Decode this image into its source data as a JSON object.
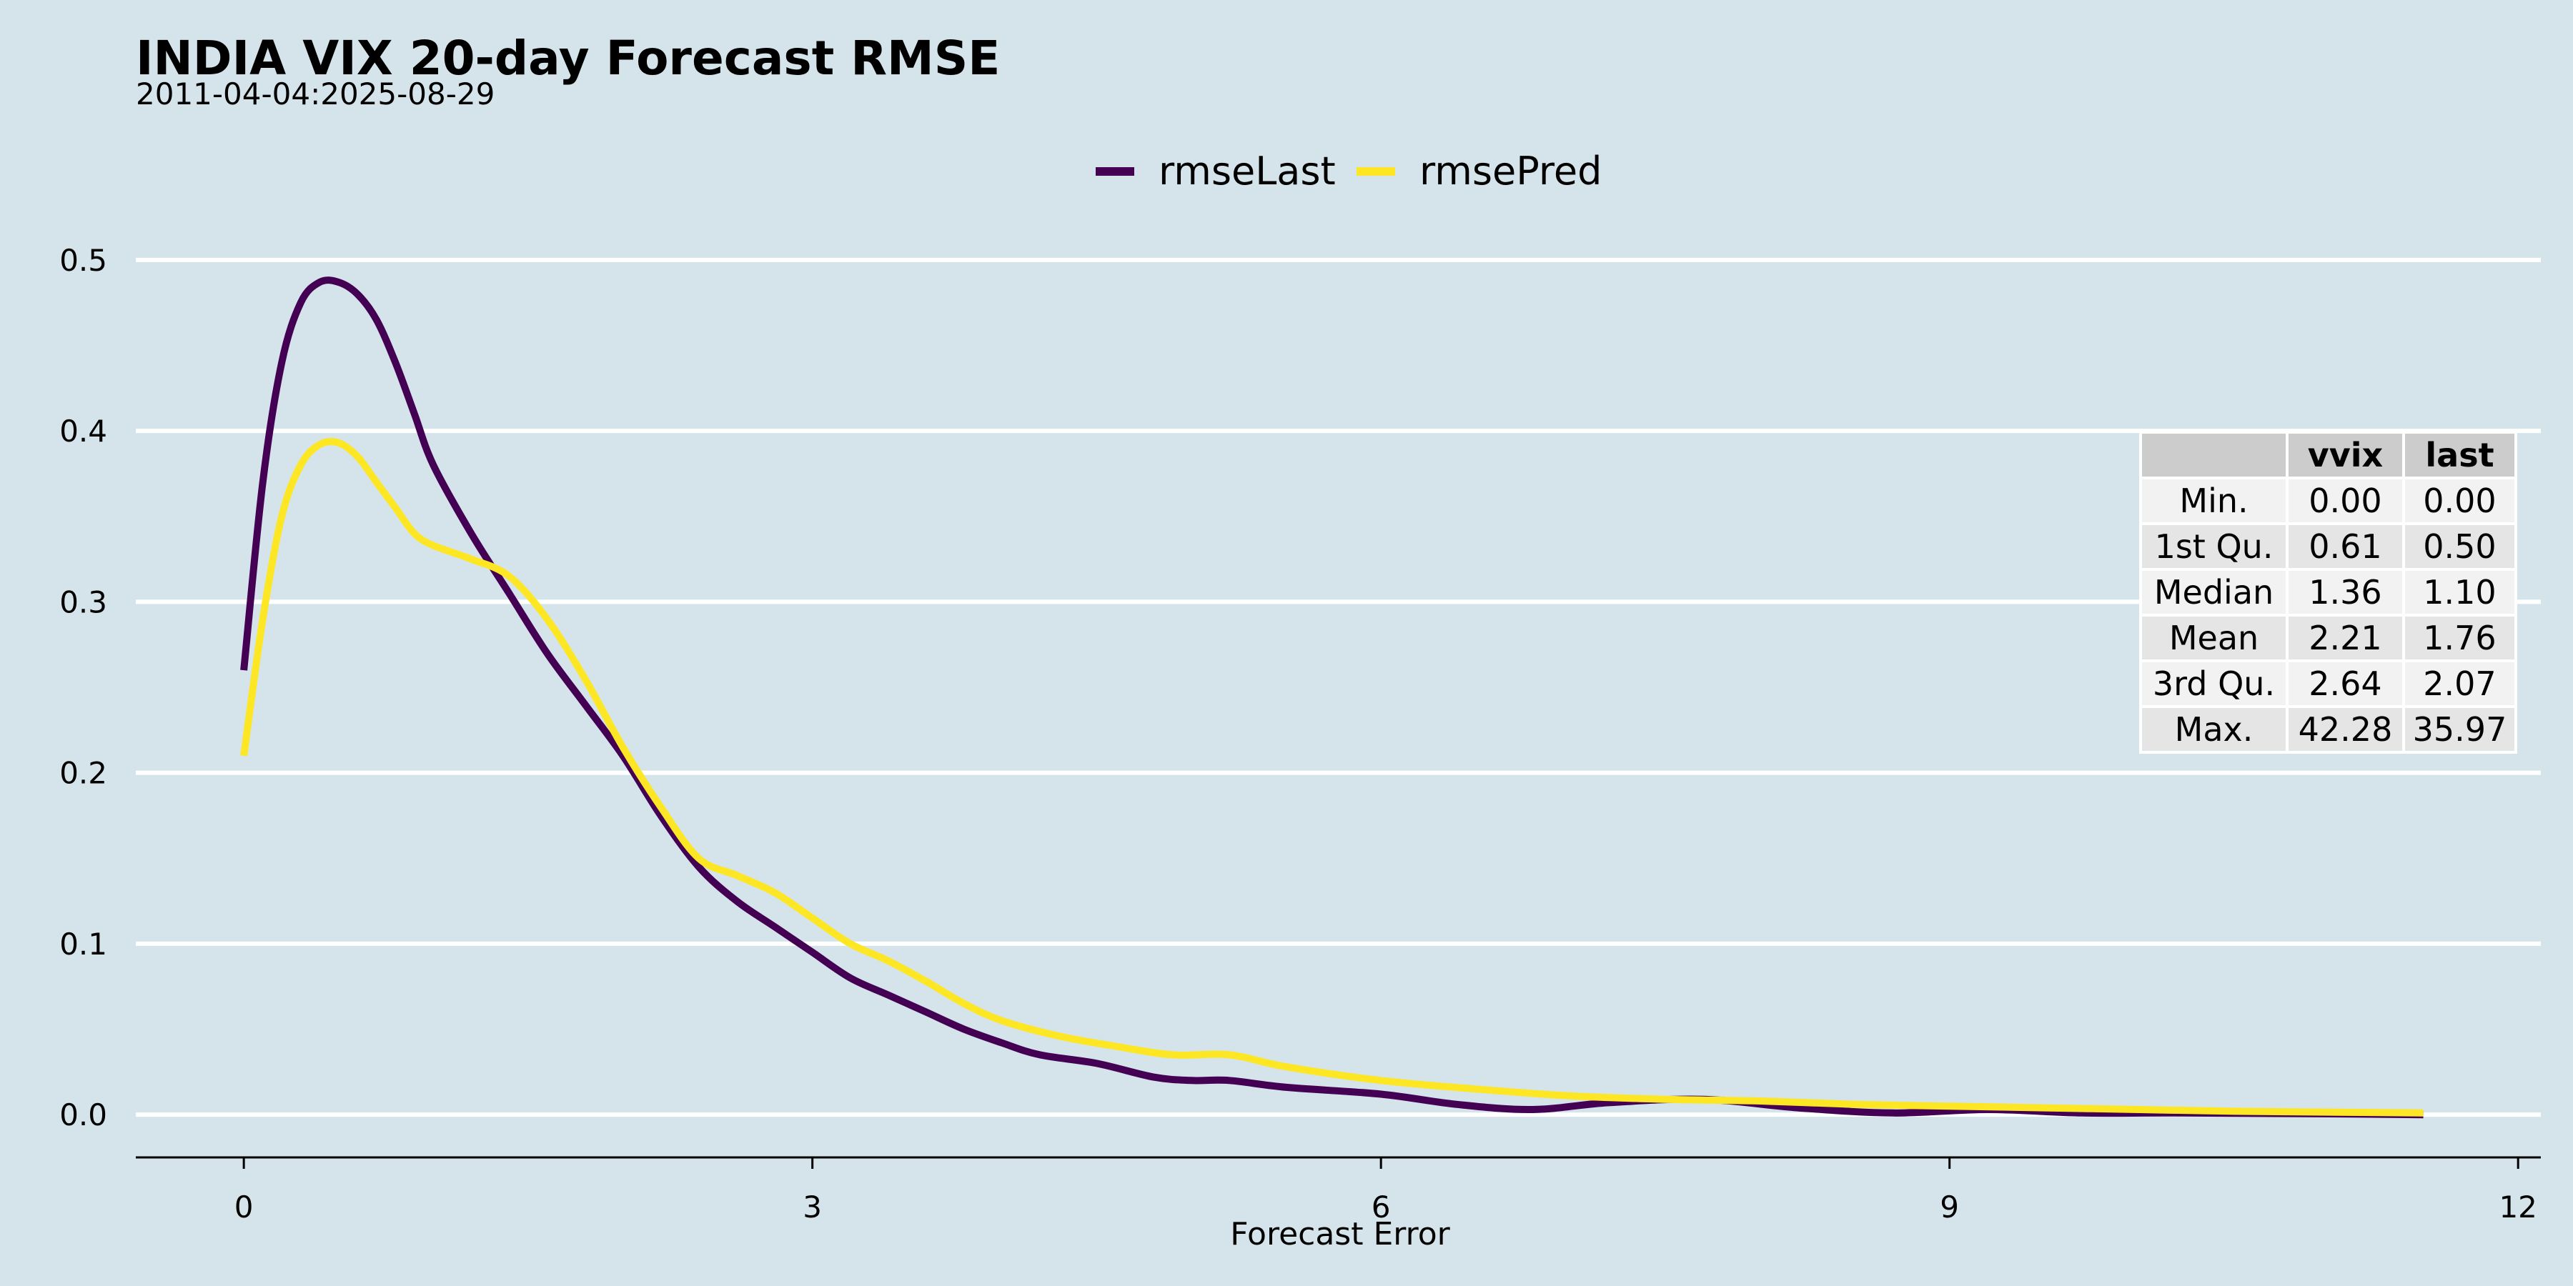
{
  "colors": {
    "background": "#d5e4eb",
    "gridline": "#ffffff",
    "axis": "#000000",
    "rmseLast": "#440154",
    "rmsePred": "#fde725",
    "table_header_bg": "#cccccc",
    "table_row_light": "#f2f2f2",
    "table_row_dark": "#e5e5e5"
  },
  "chart_data": {
    "type": "line",
    "title": "INDIA VIX 20-day Forecast RMSE",
    "subtitle": "2011-04-04:2025-08-29",
    "xlabel": "Forecast Error",
    "ylabel": "",
    "xlim": [
      -0.57,
      12.12
    ],
    "ylim": [
      -0.025,
      0.51
    ],
    "x_ticks": [
      0,
      3,
      6,
      9,
      12
    ],
    "y_ticks": [
      0.0,
      0.1,
      0.2,
      0.3,
      0.4,
      0.5
    ],
    "x_tick_labels": [
      "0",
      "3",
      "6",
      "9",
      "12"
    ],
    "y_tick_labels": [
      "0.0",
      "0.1",
      "0.2",
      "0.3",
      "0.4",
      "0.5"
    ],
    "grid": "horizontal",
    "legend_position": "top",
    "series": [
      {
        "name": "rmseLast",
        "color": "#440154",
        "points": [
          [
            0.0,
            0.26
          ],
          [
            0.1,
            0.37
          ],
          [
            0.2,
            0.44
          ],
          [
            0.3,
            0.475
          ],
          [
            0.4,
            0.487
          ],
          [
            0.5,
            0.487
          ],
          [
            0.6,
            0.48
          ],
          [
            0.7,
            0.465
          ],
          [
            0.8,
            0.44
          ],
          [
            0.9,
            0.41
          ],
          [
            1.0,
            0.38
          ],
          [
            1.2,
            0.34
          ],
          [
            1.4,
            0.305
          ],
          [
            1.6,
            0.27
          ],
          [
            1.8,
            0.24
          ],
          [
            2.0,
            0.21
          ],
          [
            2.2,
            0.175
          ],
          [
            2.4,
            0.145
          ],
          [
            2.6,
            0.125
          ],
          [
            2.8,
            0.11
          ],
          [
            3.0,
            0.095
          ],
          [
            3.2,
            0.08
          ],
          [
            3.4,
            0.07
          ],
          [
            3.6,
            0.06
          ],
          [
            3.8,
            0.05
          ],
          [
            4.0,
            0.042
          ],
          [
            4.2,
            0.035
          ],
          [
            4.5,
            0.03
          ],
          [
            4.8,
            0.022
          ],
          [
            5.0,
            0.02
          ],
          [
            5.2,
            0.02
          ],
          [
            5.5,
            0.016
          ],
          [
            6.0,
            0.012
          ],
          [
            6.4,
            0.006
          ],
          [
            6.8,
            0.003
          ],
          [
            7.2,
            0.007
          ],
          [
            7.7,
            0.009
          ],
          [
            8.2,
            0.004
          ],
          [
            8.7,
            0.001
          ],
          [
            9.2,
            0.003
          ],
          [
            9.7,
            0.001
          ],
          [
            10.2,
            0.001
          ],
          [
            11.0,
            0.0005
          ],
          [
            11.5,
            0.0
          ]
        ]
      },
      {
        "name": "rmsePred",
        "color": "#fde725",
        "points": [
          [
            0.0,
            0.21
          ],
          [
            0.1,
            0.29
          ],
          [
            0.2,
            0.35
          ],
          [
            0.3,
            0.38
          ],
          [
            0.4,
            0.392
          ],
          [
            0.5,
            0.393
          ],
          [
            0.6,
            0.385
          ],
          [
            0.7,
            0.37
          ],
          [
            0.8,
            0.355
          ],
          [
            0.9,
            0.34
          ],
          [
            1.0,
            0.333
          ],
          [
            1.2,
            0.325
          ],
          [
            1.4,
            0.315
          ],
          [
            1.6,
            0.29
          ],
          [
            1.8,
            0.255
          ],
          [
            2.0,
            0.215
          ],
          [
            2.2,
            0.18
          ],
          [
            2.4,
            0.15
          ],
          [
            2.6,
            0.14
          ],
          [
            2.8,
            0.13
          ],
          [
            3.0,
            0.115
          ],
          [
            3.2,
            0.1
          ],
          [
            3.4,
            0.09
          ],
          [
            3.6,
            0.078
          ],
          [
            3.8,
            0.065
          ],
          [
            4.0,
            0.055
          ],
          [
            4.3,
            0.046
          ],
          [
            4.6,
            0.04
          ],
          [
            4.9,
            0.035
          ],
          [
            5.2,
            0.035
          ],
          [
            5.5,
            0.028
          ],
          [
            6.0,
            0.02
          ],
          [
            6.5,
            0.015
          ],
          [
            7.0,
            0.011
          ],
          [
            7.5,
            0.009
          ],
          [
            8.0,
            0.008
          ],
          [
            8.5,
            0.006
          ],
          [
            9.0,
            0.005
          ],
          [
            9.5,
            0.004
          ],
          [
            10.0,
            0.003
          ],
          [
            10.5,
            0.002
          ],
          [
            11.0,
            0.0015
          ],
          [
            11.5,
            0.001
          ]
        ]
      }
    ],
    "table": {
      "columns": [
        "",
        "vvix",
        "last"
      ],
      "rows": [
        [
          "Min.",
          "0.00",
          "0.00"
        ],
        [
          "1st Qu.",
          "0.61",
          "0.50"
        ],
        [
          "Median",
          "1.36",
          "1.10"
        ],
        [
          "Mean",
          "2.21",
          "1.76"
        ],
        [
          "3rd Qu.",
          "2.64",
          "2.07"
        ],
        [
          "Max.",
          "42.28",
          "35.97"
        ]
      ]
    }
  }
}
